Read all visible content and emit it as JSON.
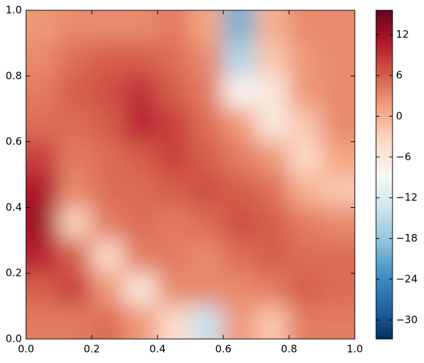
{
  "chart_data": {
    "type": "heatmap",
    "x": [
      0.05,
      0.15,
      0.25,
      0.35,
      0.45,
      0.55,
      0.65,
      0.75,
      0.85,
      0.95
    ],
    "y": [
      0.95,
      0.85,
      0.75,
      0.65,
      0.55,
      0.45,
      0.35,
      0.25,
      0.15,
      0.05
    ],
    "z": [
      [
        2,
        3,
        3,
        3,
        4,
        1,
        -20,
        0,
        3,
        3
      ],
      [
        3,
        5,
        6,
        6,
        5,
        3,
        -16,
        -2,
        2,
        3
      ],
      [
        4,
        6,
        7,
        9,
        6,
        4,
        -8,
        -6,
        2,
        3
      ],
      [
        5,
        5,
        6,
        10,
        8,
        5,
        2,
        -6,
        -2,
        3
      ],
      [
        8,
        4,
        5,
        6,
        8,
        6,
        4,
        2,
        -4,
        1
      ],
      [
        11,
        3,
        5,
        5,
        6,
        7,
        6,
        5,
        0,
        -2
      ],
      [
        12,
        -3,
        4,
        5,
        4,
        5,
        7,
        6,
        4,
        3
      ],
      [
        10,
        6,
        -4,
        4,
        4,
        3,
        5,
        6,
        5,
        5
      ],
      [
        6,
        8,
        2,
        -6,
        3,
        3,
        3,
        4,
        6,
        5
      ],
      [
        4,
        4,
        5,
        2,
        -4,
        -14,
        2,
        -2,
        4,
        4
      ]
    ],
    "xlim": [
      0,
      1
    ],
    "ylim": [
      0,
      1
    ],
    "xticks": [
      {
        "value": 0,
        "label": "0.0"
      },
      0.2,
      0.4,
      0.6,
      0.8,
      {
        "value": 1,
        "label": "1.0"
      }
    ],
    "yticks": [
      {
        "value": 0,
        "label": "0.0"
      },
      0.2,
      0.4,
      0.6,
      0.8,
      {
        "value": 1,
        "label": "1.0"
      }
    ],
    "colormap": [
      "#053061",
      "#2166ac",
      "#4393c3",
      "#92c5de",
      "#d1e5f0",
      "#f7f7f7",
      "#fddbc7",
      "#f4a582",
      "#d6604d",
      "#b2182b",
      "#67001f"
    ],
    "clim": [
      -32.8,
      15.6
    ],
    "cticks": [
      {
        "value": -30,
        "label": "−30"
      },
      {
        "value": -24,
        "label": "−24"
      },
      {
        "value": -18,
        "label": "−18"
      },
      {
        "value": -12,
        "label": "−12"
      },
      {
        "value": -6,
        "label": "−6"
      },
      0,
      6,
      12
    ]
  }
}
